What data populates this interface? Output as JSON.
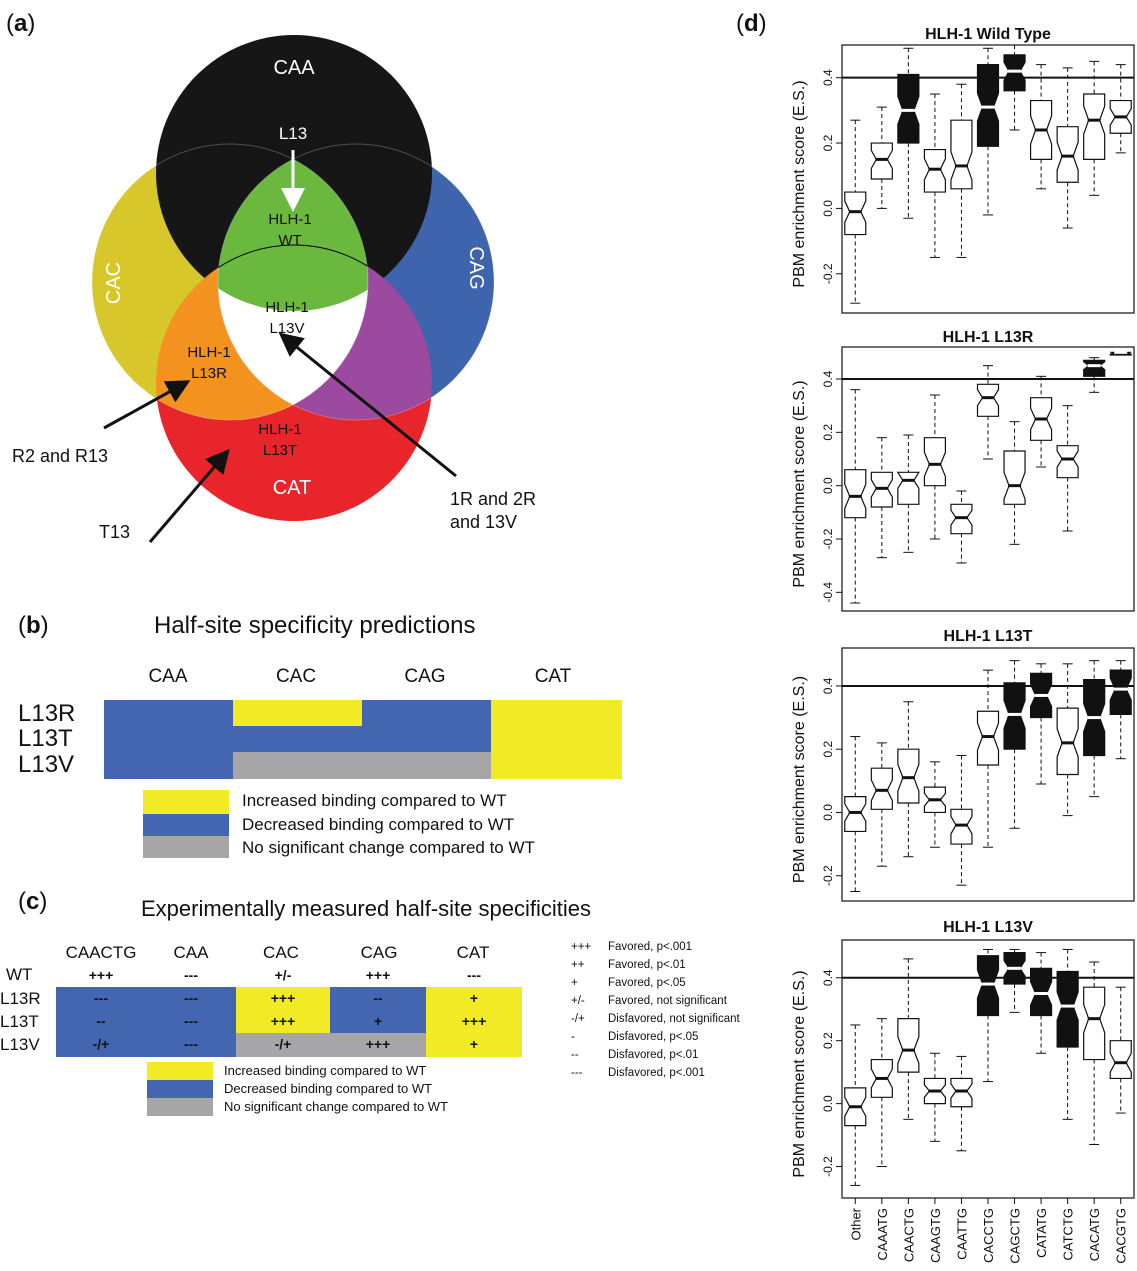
{
  "panel_labels": {
    "a": "a",
    "b": "b",
    "c": "c",
    "d": "d"
  },
  "venn": {
    "sets": [
      {
        "label": "CAA",
        "color": "#161616"
      },
      {
        "label": "CAC",
        "color": "#d7c72b"
      },
      {
        "label": "CAG",
        "color": "#3d64ad"
      },
      {
        "label": "CAT",
        "color": "#e8252b"
      }
    ],
    "inner_labels": {
      "l13": "L13",
      "wt_1": "HLH-1",
      "wt_2": "WT",
      "l13v_1": "HLH-1",
      "l13v_2": "L13V",
      "l13r_1": "HLH-1",
      "l13r_2": "L13R",
      "l13t_1": "HLH-1",
      "l13t_2": "L13T"
    },
    "annotations": {
      "r": "R2 and R13",
      "t": "T13",
      "v_1": "1R and 2R",
      "v_2": "and 13V"
    },
    "region_colors": {
      "wt": "#6bb83f",
      "l13r": "#f3921f",
      "purple": "#9c49a0",
      "l13v": "#ffffff"
    }
  },
  "panel_b": {
    "title": "Half-site specificity predictions",
    "columns": [
      "CAA",
      "CAC",
      "CAG",
      "CAT"
    ],
    "rows": [
      {
        "label": "L13R",
        "cells": [
          "decreased",
          "increased",
          "decreased",
          "increased"
        ]
      },
      {
        "label": "L13T",
        "cells": [
          "decreased",
          "decreased",
          "decreased",
          "increased"
        ]
      },
      {
        "label": "L13V",
        "cells": [
          "decreased",
          "nochange",
          "nochange",
          "increased"
        ]
      }
    ],
    "legend": [
      {
        "key": "increased",
        "label": "Increased binding compared to WT"
      },
      {
        "key": "decreased",
        "label": "Decreased binding compared to WT"
      },
      {
        "key": "nochange",
        "label": "No significant change compared to WT"
      }
    ],
    "colors": {
      "increased": "#f2ea24",
      "decreased": "#4466b0",
      "nochange": "#a6a6a8"
    }
  },
  "panel_c": {
    "title": "Experimentally measured half-site specificities",
    "columns": [
      "CAACTG",
      "CAA",
      "CAC",
      "CAG",
      "CAT"
    ],
    "rows": [
      {
        "label": "WT",
        "values": [
          "+++",
          "---",
          "+/-",
          "+++",
          "---"
        ],
        "fill": [
          "none",
          "none",
          "none",
          "none",
          "none"
        ]
      },
      {
        "label": "L13R",
        "values": [
          "---",
          "---",
          "+++",
          "--",
          "+"
        ],
        "fill": [
          "decreased",
          "decreased",
          "increased",
          "decreased",
          "increased"
        ]
      },
      {
        "label": "L13T",
        "values": [
          "--",
          "---",
          "+++",
          "+",
          "+++"
        ],
        "fill": [
          "decreased",
          "decreased",
          "increased",
          "decreased",
          "increased"
        ]
      },
      {
        "label": "L13V",
        "values": [
          "-/+",
          "---",
          "-/+",
          "+++",
          "+"
        ],
        "fill": [
          "decreased",
          "decreased",
          "nochange",
          "nochange",
          "increased"
        ]
      }
    ],
    "legend": [
      {
        "key": "increased",
        "label": "Increased binding compared to WT"
      },
      {
        "key": "decreased",
        "label": "Decreased binding compared to WT"
      },
      {
        "key": "nochange",
        "label": "No significant change compared to WT"
      }
    ],
    "key": [
      {
        "symbol": "+++",
        "meaning": "Favored, p<.001"
      },
      {
        "symbol": "++",
        "meaning": "Favored, p<.01"
      },
      {
        "symbol": "+",
        "meaning": "Favored, p<.05"
      },
      {
        "symbol": "+/-",
        "meaning": "Favored, not significant"
      },
      {
        "symbol": "-/+",
        "meaning": "Disfavored, not significant"
      },
      {
        "symbol": "-",
        "meaning": "Disfavored, p<.05"
      },
      {
        "symbol": "--",
        "meaning": "Disfavored, p<.01"
      },
      {
        "symbol": "---",
        "meaning": "Disfavored, p<.001"
      }
    ]
  },
  "chart_data": [
    {
      "type": "boxplot",
      "title": "HLH-1 Wild Type",
      "ylabel": "PBM enrichment score (E.S.)",
      "ylim": [
        -0.32,
        0.5
      ],
      "yticks": [
        -0.2,
        0.0,
        0.2,
        0.4
      ],
      "reference_line": 0.4,
      "categories": [
        "Other",
        "CAAATG",
        "CAACTG",
        "CAAGTG",
        "CAATTG",
        "CACCTG",
        "CAGCTG",
        "CATATG",
        "CATCTG",
        "CACATG",
        "CACGTG"
      ],
      "boxes": [
        {
          "min": -0.29,
          "q1": -0.08,
          "median": -0.01,
          "q3": 0.05,
          "max": 0.27,
          "filled": false
        },
        {
          "min": 0.0,
          "q1": 0.09,
          "median": 0.15,
          "q3": 0.2,
          "max": 0.31,
          "filled": false
        },
        {
          "min": -0.03,
          "q1": 0.2,
          "median": 0.3,
          "q3": 0.41,
          "max": 0.49,
          "filled": true
        },
        {
          "min": -0.15,
          "q1": 0.05,
          "median": 0.12,
          "q3": 0.18,
          "max": 0.35,
          "filled": false
        },
        {
          "min": -0.15,
          "q1": 0.06,
          "median": 0.13,
          "q3": 0.27,
          "max": 0.38,
          "filled": false
        },
        {
          "min": -0.02,
          "q1": 0.19,
          "median": 0.31,
          "q3": 0.44,
          "max": 0.49,
          "filled": true
        },
        {
          "min": 0.24,
          "q1": 0.36,
          "median": 0.42,
          "q3": 0.47,
          "max": 0.5,
          "filled": true
        },
        {
          "min": 0.06,
          "q1": 0.15,
          "median": 0.24,
          "q3": 0.33,
          "max": 0.44,
          "filled": false
        },
        {
          "min": -0.06,
          "q1": 0.08,
          "median": 0.16,
          "q3": 0.25,
          "max": 0.43,
          "filled": false
        },
        {
          "min": 0.04,
          "q1": 0.15,
          "median": 0.27,
          "q3": 0.35,
          "max": 0.45,
          "filled": false
        },
        {
          "min": 0.17,
          "q1": 0.23,
          "median": 0.28,
          "q3": 0.33,
          "max": 0.44,
          "filled": false
        }
      ]
    },
    {
      "type": "boxplot",
      "title": "HLH-1 L13R",
      "ylabel": "PBM enrichment score (E.S.)",
      "ylim": [
        -0.47,
        0.52
      ],
      "yticks": [
        -0.4,
        -0.2,
        0.0,
        0.2,
        0.4
      ],
      "reference_line": 0.4,
      "categories": [
        "Other",
        "CAAATG",
        "CAACTG",
        "CAAGTG",
        "CAATTG",
        "CACCTG",
        "CAGCTG",
        "CATATG",
        "CATCTG",
        "CACATG",
        "CACGTG"
      ],
      "boxes": [
        {
          "min": -0.44,
          "q1": -0.12,
          "median": -0.04,
          "q3": 0.06,
          "max": 0.36,
          "filled": false
        },
        {
          "min": -0.27,
          "q1": -0.08,
          "median": -0.01,
          "q3": 0.05,
          "max": 0.18,
          "filled": false
        },
        {
          "min": -0.25,
          "q1": -0.07,
          "median": 0.02,
          "q3": 0.05,
          "max": 0.19,
          "filled": false
        },
        {
          "min": -0.2,
          "q1": 0.0,
          "median": 0.08,
          "q3": 0.18,
          "max": 0.34,
          "filled": false
        },
        {
          "min": -0.29,
          "q1": -0.18,
          "median": -0.12,
          "q3": -0.07,
          "max": -0.02,
          "filled": false
        },
        {
          "min": 0.1,
          "q1": 0.26,
          "median": 0.33,
          "q3": 0.38,
          "max": 0.45,
          "filled": false
        },
        {
          "min": -0.22,
          "q1": -0.07,
          "median": 0.0,
          "q3": 0.13,
          "max": 0.24,
          "filled": false
        },
        {
          "min": 0.07,
          "q1": 0.17,
          "median": 0.25,
          "q3": 0.33,
          "max": 0.41,
          "filled": false
        },
        {
          "min": -0.17,
          "q1": 0.03,
          "median": 0.1,
          "q3": 0.15,
          "max": 0.3,
          "filled": false
        },
        {
          "min": 0.35,
          "q1": 0.41,
          "median": 0.45,
          "q3": 0.47,
          "max": 0.48,
          "filled": true
        },
        {
          "min": 0.49,
          "q1": 0.49,
          "median": 0.5,
          "q3": 0.5,
          "max": 0.5,
          "filled": true
        }
      ]
    },
    {
      "type": "boxplot",
      "title": "HLH-1 L13T",
      "ylabel": "PBM enrichment score (E.S.)",
      "ylim": [
        -0.28,
        0.52
      ],
      "yticks": [
        -0.2,
        0.0,
        0.2,
        0.4
      ],
      "reference_line": 0.4,
      "categories": [
        "Other",
        "CAAATG",
        "CAACTG",
        "CAAGTG",
        "CAATTG",
        "CACCTG",
        "CAGCTG",
        "CATATG",
        "CATCTG",
        "CACATG",
        "CACGTG"
      ],
      "boxes": [
        {
          "min": -0.25,
          "q1": -0.06,
          "median": 0.0,
          "q3": 0.05,
          "max": 0.24,
          "filled": false
        },
        {
          "min": -0.17,
          "q1": 0.01,
          "median": 0.07,
          "q3": 0.14,
          "max": 0.22,
          "filled": false
        },
        {
          "min": -0.14,
          "q1": 0.03,
          "median": 0.11,
          "q3": 0.2,
          "max": 0.35,
          "filled": false
        },
        {
          "min": -0.11,
          "q1": 0.0,
          "median": 0.04,
          "q3": 0.08,
          "max": 0.16,
          "filled": false
        },
        {
          "min": -0.23,
          "q1": -0.1,
          "median": -0.04,
          "q3": 0.01,
          "max": 0.18,
          "filled": false
        },
        {
          "min": -0.11,
          "q1": 0.15,
          "median": 0.24,
          "q3": 0.32,
          "max": 0.45,
          "filled": false
        },
        {
          "min": -0.05,
          "q1": 0.2,
          "median": 0.31,
          "q3": 0.41,
          "max": 0.48,
          "filled": true
        },
        {
          "min": 0.09,
          "q1": 0.3,
          "median": 0.37,
          "q3": 0.44,
          "max": 0.47,
          "filled": true
        },
        {
          "min": -0.01,
          "q1": 0.12,
          "median": 0.22,
          "q3": 0.33,
          "max": 0.47,
          "filled": false
        },
        {
          "min": 0.05,
          "q1": 0.18,
          "median": 0.3,
          "q3": 0.42,
          "max": 0.48,
          "filled": true
        },
        {
          "min": 0.17,
          "q1": 0.31,
          "median": 0.39,
          "q3": 0.45,
          "max": 0.48,
          "filled": true
        }
      ]
    },
    {
      "type": "boxplot",
      "title": "HLH-1 L13V",
      "ylabel": "PBM enrichment score (E.S.)",
      "ylim": [
        -0.3,
        0.52
      ],
      "yticks": [
        -0.2,
        0.0,
        0.2,
        0.4
      ],
      "reference_line": 0.4,
      "categories": [
        "Other",
        "CAAATG",
        "CAACTG",
        "CAAGTG",
        "CAATTG",
        "CACCTG",
        "CAGCTG",
        "CATATG",
        "CATCTG",
        "CACATG",
        "CACGTG"
      ],
      "boxes": [
        {
          "min": -0.26,
          "q1": -0.07,
          "median": -0.01,
          "q3": 0.05,
          "max": 0.25,
          "filled": false
        },
        {
          "min": -0.2,
          "q1": 0.02,
          "median": 0.08,
          "q3": 0.14,
          "max": 0.27,
          "filled": false
        },
        {
          "min": -0.05,
          "q1": 0.1,
          "median": 0.17,
          "q3": 0.27,
          "max": 0.46,
          "filled": false
        },
        {
          "min": -0.12,
          "q1": 0.0,
          "median": 0.04,
          "q3": 0.08,
          "max": 0.16,
          "filled": false
        },
        {
          "min": -0.15,
          "q1": -0.01,
          "median": 0.04,
          "q3": 0.08,
          "max": 0.15,
          "filled": false
        },
        {
          "min": 0.07,
          "q1": 0.28,
          "median": 0.38,
          "q3": 0.47,
          "max": 0.49,
          "filled": true
        },
        {
          "min": 0.29,
          "q1": 0.38,
          "median": 0.43,
          "q3": 0.48,
          "max": 0.49,
          "filled": true
        },
        {
          "min": 0.16,
          "q1": 0.28,
          "median": 0.35,
          "q3": 0.43,
          "max": 0.48,
          "filled": true
        },
        {
          "min": -0.05,
          "q1": 0.18,
          "median": 0.31,
          "q3": 0.42,
          "max": 0.49,
          "filled": true
        },
        {
          "min": -0.13,
          "q1": 0.14,
          "median": 0.27,
          "q3": 0.37,
          "max": 0.45,
          "filled": false
        },
        {
          "min": -0.03,
          "q1": 0.08,
          "median": 0.13,
          "q3": 0.2,
          "max": 0.37,
          "filled": false
        }
      ]
    }
  ]
}
